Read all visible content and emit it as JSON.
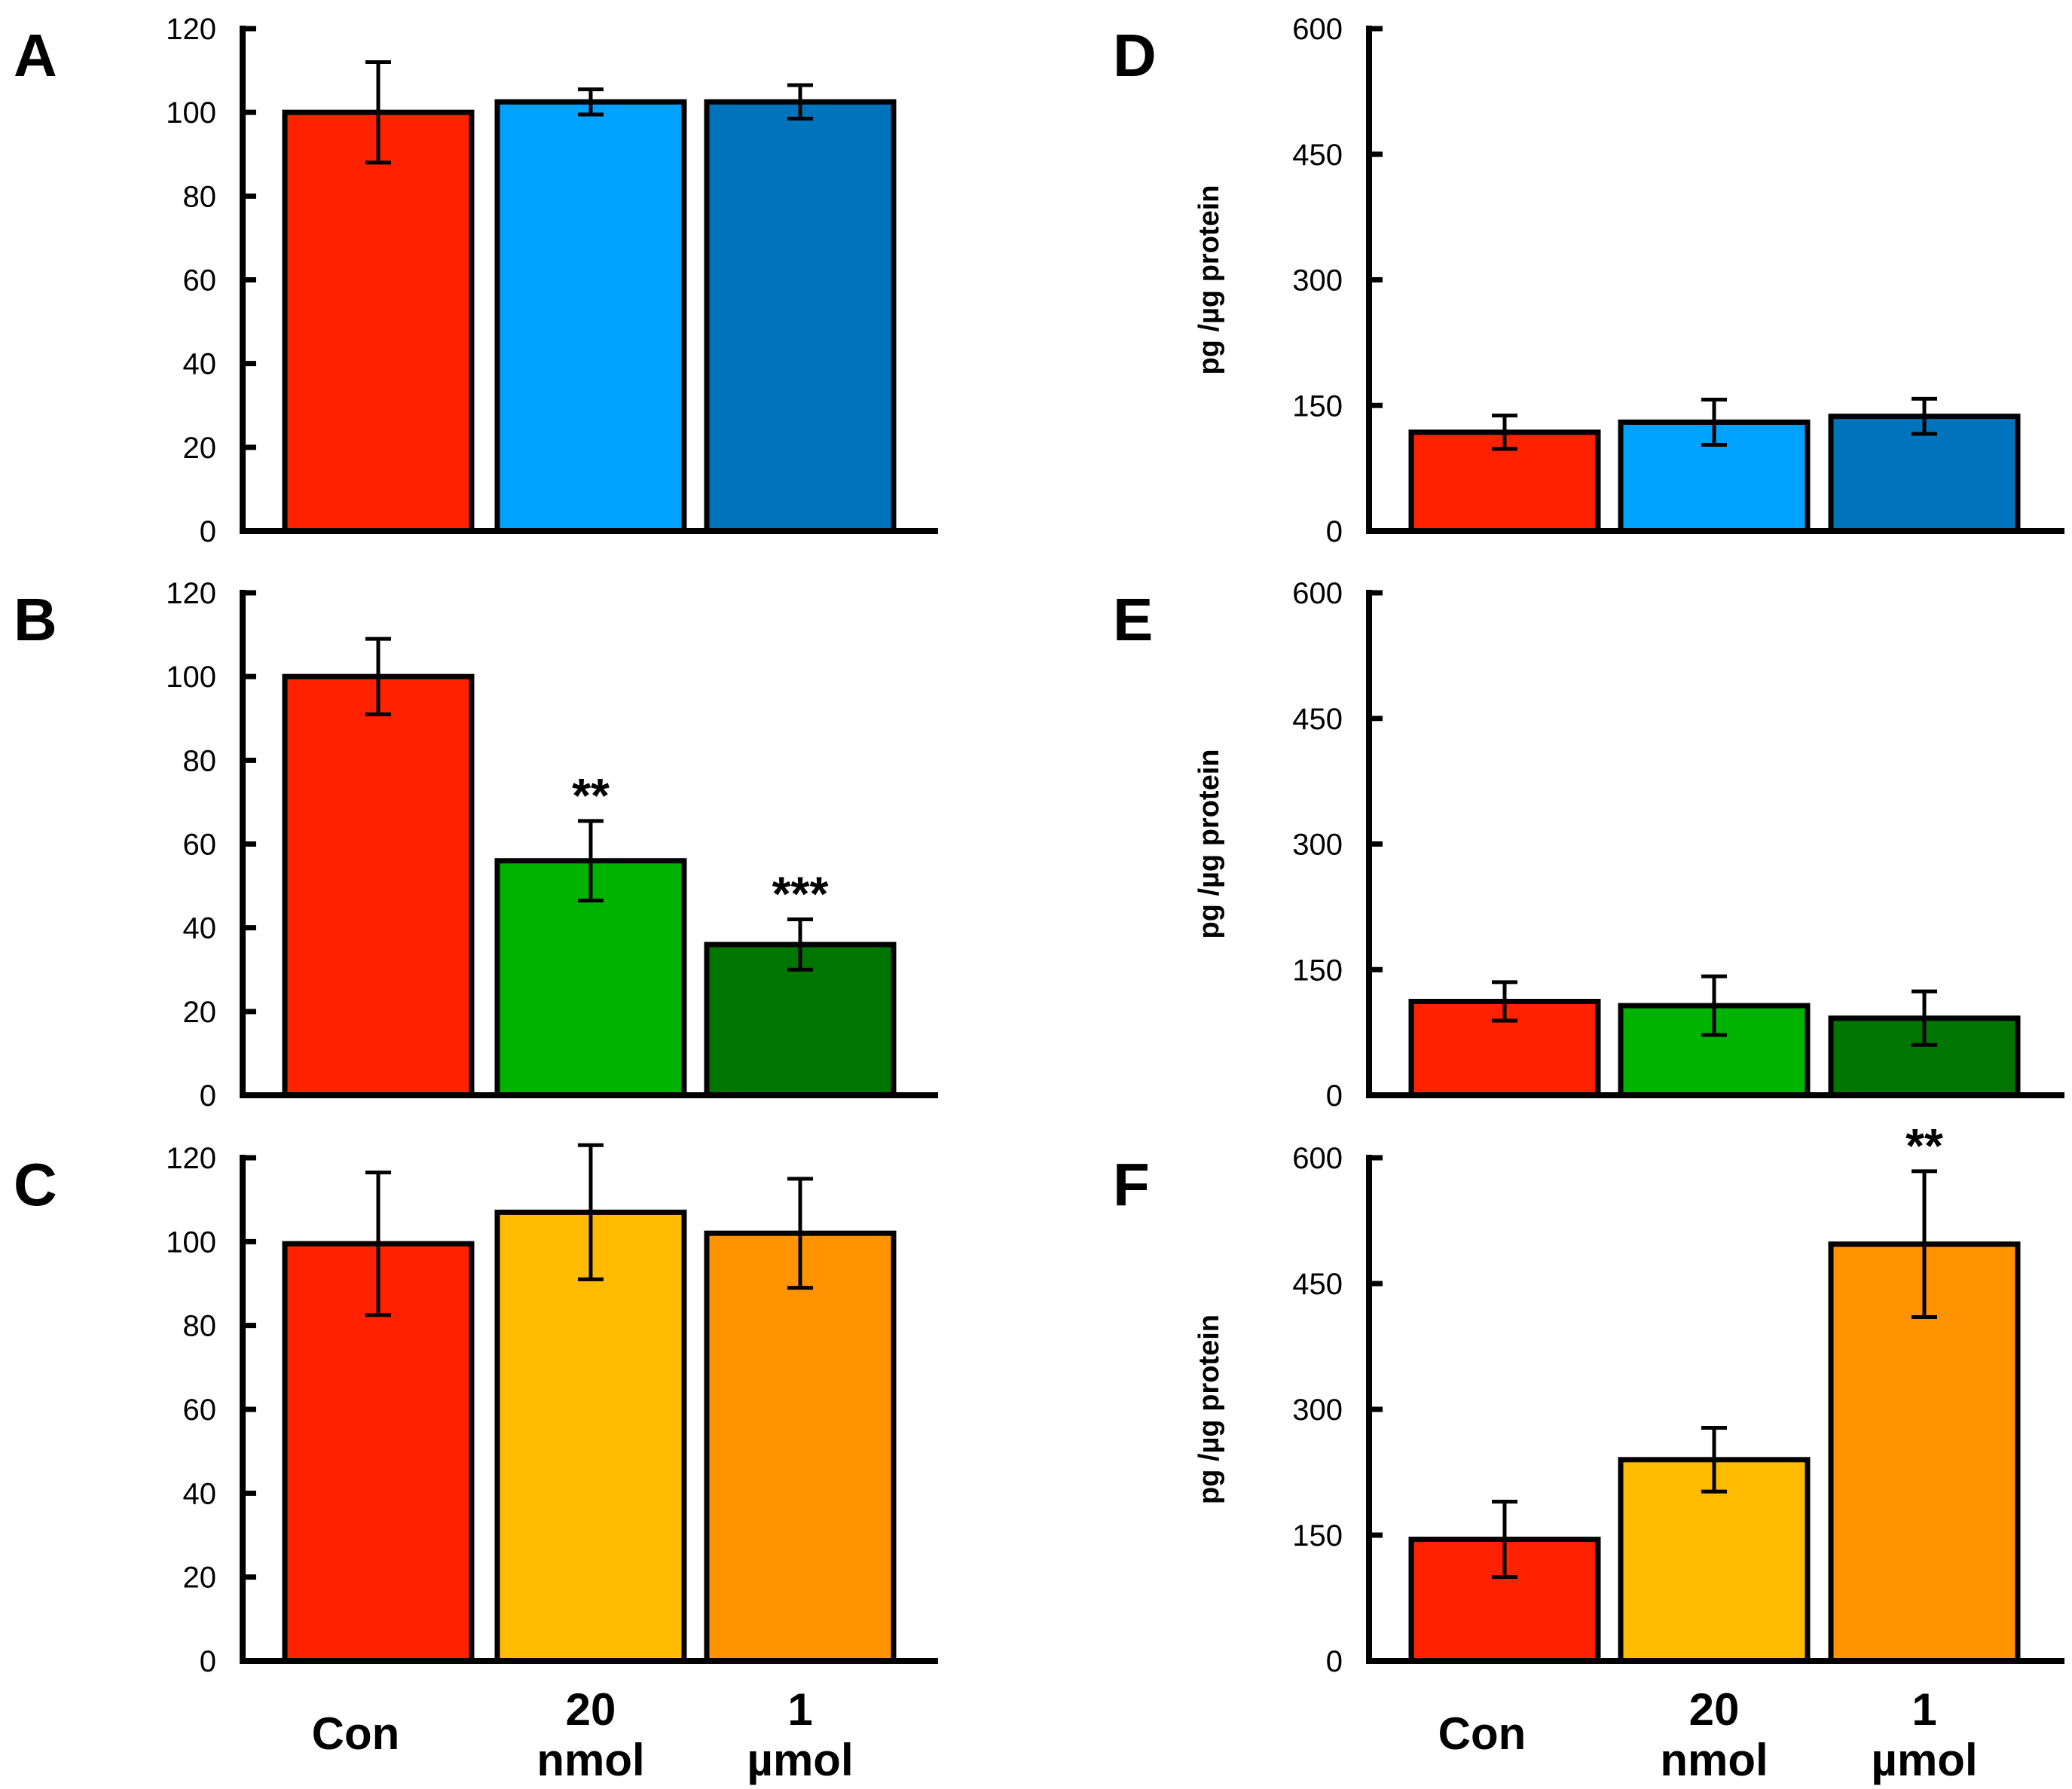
{
  "colors": {
    "con": "#ff2200",
    "light_blue": "#00a2ff",
    "dark_blue": "#0073bd",
    "light_green": "#00b300",
    "dark_green": "#007500",
    "light_orange": "#ffbb00",
    "dark_orange": "#ff9300"
  },
  "chart_data": [
    {
      "panel": "A",
      "type": "bar",
      "ylabel": "",
      "categories": [
        "Con",
        "20 nmol",
        "1 µmol"
      ],
      "values": [
        100,
        102.5,
        102.5
      ],
      "errors": [
        12,
        3,
        4
      ],
      "significance": [
        "",
        "",
        ""
      ],
      "colors": [
        "con",
        "light_blue",
        "dark_blue"
      ],
      "ylim": [
        0,
        120
      ],
      "yticks": [
        "0",
        "20",
        "40",
        "60",
        "80",
        "100",
        "120"
      ]
    },
    {
      "panel": "B",
      "type": "bar",
      "ylabel": "",
      "categories": [
        "Con",
        "20 nmol",
        "1 µmol"
      ],
      "values": [
        100,
        56,
        36
      ],
      "errors": [
        9,
        9.5,
        6
      ],
      "significance": [
        "",
        "**",
        "***"
      ],
      "colors": [
        "con",
        "light_green",
        "dark_green"
      ],
      "ylim": [
        0,
        120
      ],
      "yticks": [
        "0",
        "20",
        "40",
        "60",
        "80",
        "100",
        "120"
      ]
    },
    {
      "panel": "C",
      "type": "bar",
      "ylabel": "",
      "categories": [
        "Con",
        "20 nmol",
        "1 µmol"
      ],
      "values": [
        99.5,
        107,
        102
      ],
      "errors": [
        17,
        16,
        13
      ],
      "significance": [
        "",
        "",
        ""
      ],
      "colors": [
        "con",
        "light_orange",
        "dark_orange"
      ],
      "ylim": [
        0,
        120
      ],
      "yticks": [
        "0",
        "20",
        "40",
        "60",
        "80",
        "100",
        "120"
      ]
    },
    {
      "panel": "D",
      "type": "bar",
      "ylabel": "pg /µg protein",
      "categories": [
        "Con",
        "20 nmol",
        "1 µmol"
      ],
      "values": [
        118,
        130,
        137
      ],
      "errors": [
        20,
        27,
        21
      ],
      "significance": [
        "",
        "",
        ""
      ],
      "colors": [
        "con",
        "light_blue",
        "dark_blue"
      ],
      "ylim": [
        0,
        600
      ],
      "yticks": [
        "0",
        "150",
        "300",
        "450",
        "600"
      ]
    },
    {
      "panel": "E",
      "type": "bar",
      "ylabel": "pg /µg protein",
      "categories": [
        "Con",
        "20 nmol",
        "1 µmol"
      ],
      "values": [
        112,
        107,
        92
      ],
      "errors": [
        23,
        35,
        32
      ],
      "significance": [
        "",
        "",
        ""
      ],
      "colors": [
        "con",
        "light_green",
        "dark_green"
      ],
      "ylim": [
        0,
        600
      ],
      "yticks": [
        "0",
        "150",
        "300",
        "450",
        "600"
      ]
    },
    {
      "panel": "F",
      "type": "bar",
      "ylabel": "pg /µg protein",
      "categories": [
        "Con",
        "20 nmol",
        "1 µmol"
      ],
      "values": [
        145,
        240,
        497
      ],
      "errors": [
        45,
        38,
        87
      ],
      "significance": [
        "",
        "",
        "**"
      ],
      "colors": [
        "con",
        "light_orange",
        "dark_orange"
      ],
      "ylim": [
        0,
        600
      ],
      "yticks": [
        "0",
        "150",
        "300",
        "450",
        "600"
      ]
    }
  ],
  "x_axis_labels": [
    {
      "line1": "",
      "line2": "Con"
    },
    {
      "line1": "20",
      "line2": "nmol"
    },
    {
      "line1": "1",
      "line2": "µmol"
    }
  ]
}
